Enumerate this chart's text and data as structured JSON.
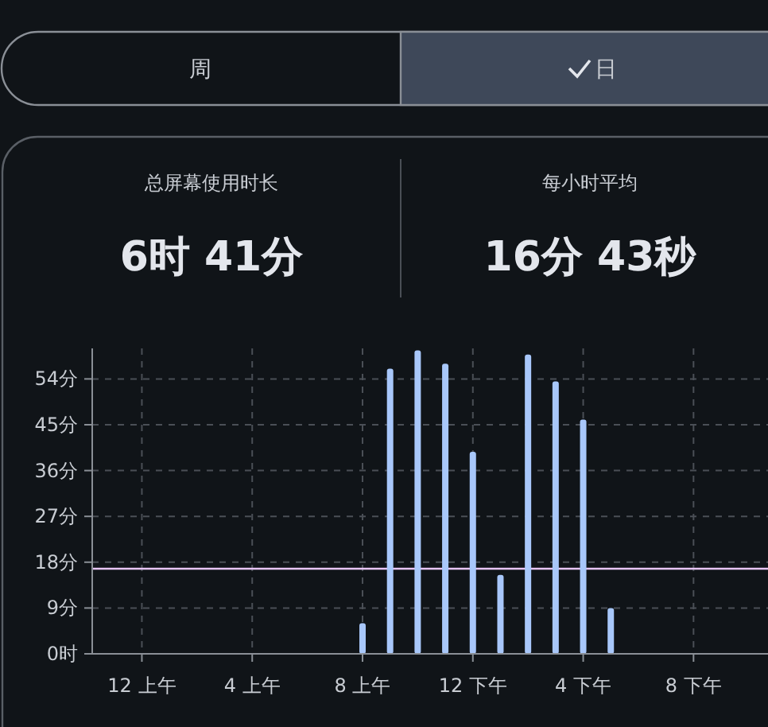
{
  "chart_data": {
    "type": "bar",
    "categories": [
      "12 上午",
      null,
      null,
      null,
      "4 上午",
      null,
      null,
      null,
      "8 上午",
      null,
      null,
      null,
      "12 下午",
      null,
      null,
      null,
      "4 下午",
      null,
      null,
      null,
      "8 下午",
      null,
      null,
      null
    ],
    "values": [
      null,
      null,
      null,
      null,
      null,
      null,
      null,
      null,
      6,
      56,
      59.6,
      57,
      39.7,
      15.5,
      58.8,
      53.5,
      46,
      9,
      null,
      null,
      null,
      null,
      null,
      null
    ],
    "color": "#a8c7fa",
    "ylim": [
      0,
      60
    ],
    "yticks": [
      {
        "value": 0,
        "label": "0时"
      },
      {
        "value": 9,
        "label": "9分"
      },
      {
        "value": 18,
        "label": "18分"
      },
      {
        "value": 27,
        "label": "27分"
      },
      {
        "value": 36,
        "label": "36分"
      },
      {
        "value": 45,
        "label": "45分"
      },
      {
        "value": 54,
        "label": "54分"
      }
    ],
    "grid": true,
    "ref_lines": [
      {
        "axis": "y",
        "value": 16.72,
        "color": "#e8c5f5"
      }
    ],
    "annotations": [
      "周",
      "日",
      "总屏幕使用时长",
      "6时 41分",
      "每小时平均",
      "16分 43秒"
    ]
  }
}
